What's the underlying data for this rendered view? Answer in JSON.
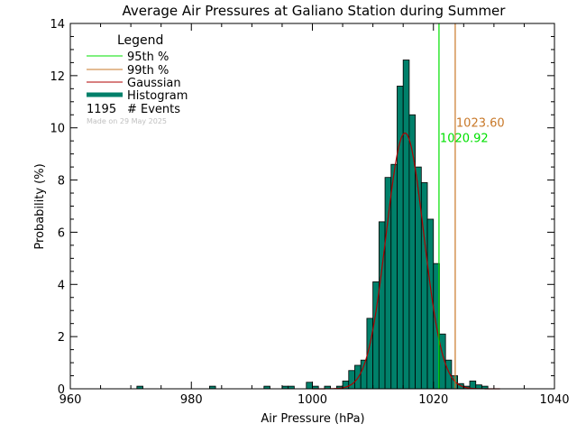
{
  "chart_data": {
    "type": "bar",
    "title": "Average Air Pressures at Galiano Station during Summer",
    "xlabel": "Air Pressure (hPa)",
    "ylabel": "Probability (%)",
    "xlim": [
      960,
      1040
    ],
    "ylim": [
      0,
      14
    ],
    "x_ticks": [
      "960",
      "980",
      "1000",
      "1020",
      "1040"
    ],
    "y_ticks": [
      "0",
      "2",
      "4",
      "6",
      "8",
      "10",
      "12",
      "14"
    ],
    "bin_width": 1,
    "histogram": [
      {
        "x": 971,
        "y": 0.1
      },
      {
        "x": 983,
        "y": 0.1
      },
      {
        "x": 992,
        "y": 0.1
      },
      {
        "x": 995,
        "y": 0.1
      },
      {
        "x": 996,
        "y": 0.1
      },
      {
        "x": 999,
        "y": 0.25
      },
      {
        "x": 1000,
        "y": 0.1
      },
      {
        "x": 1002,
        "y": 0.1
      },
      {
        "x": 1004,
        "y": 0.1
      },
      {
        "x": 1005,
        "y": 0.3
      },
      {
        "x": 1006,
        "y": 0.7
      },
      {
        "x": 1007,
        "y": 0.9
      },
      {
        "x": 1008,
        "y": 1.1
      },
      {
        "x": 1009,
        "y": 2.7
      },
      {
        "x": 1010,
        "y": 4.1
      },
      {
        "x": 1011,
        "y": 6.4
      },
      {
        "x": 1012,
        "y": 8.1
      },
      {
        "x": 1013,
        "y": 8.6
      },
      {
        "x": 1014,
        "y": 11.6
      },
      {
        "x": 1015,
        "y": 12.6
      },
      {
        "x": 1016,
        "y": 10.5
      },
      {
        "x": 1017,
        "y": 8.5
      },
      {
        "x": 1018,
        "y": 7.9
      },
      {
        "x": 1019,
        "y": 6.5
      },
      {
        "x": 1020,
        "y": 4.8
      },
      {
        "x": 1021,
        "y": 2.1
      },
      {
        "x": 1022,
        "y": 1.1
      },
      {
        "x": 1023,
        "y": 0.5
      },
      {
        "x": 1024,
        "y": 0.2
      },
      {
        "x": 1025,
        "y": 0.1
      },
      {
        "x": 1026,
        "y": 0.3
      },
      {
        "x": 1027,
        "y": 0.15
      },
      {
        "x": 1028,
        "y": 0.1
      }
    ],
    "gaussian": {
      "mean": 1015.3,
      "peak": 9.8,
      "sigma": 3.1
    },
    "percentile_95": {
      "value": 1020.92,
      "label": "1020.92"
    },
    "percentile_99": {
      "value": 1023.6,
      "label": "1023.60"
    },
    "legend": {
      "title": "Legend",
      "position": "top-left",
      "items": [
        {
          "label": "95th %",
          "type": "line",
          "color": "#00e000"
        },
        {
          "label": "99th %",
          "type": "line",
          "color": "#c87828"
        },
        {
          "label": "Gaussian",
          "type": "line",
          "color": "#b00000"
        },
        {
          "label": "Histogram",
          "type": "thick",
          "color": "#00806a"
        }
      ],
      "events_count": "1195",
      "events_label": "# Events",
      "credit": "Made on 29 May 2025"
    },
    "colors": {
      "histogram_fill": "#00806a",
      "histogram_edge": "#000000",
      "gaussian": "#b00000",
      "p95": "#00e000",
      "p99": "#c87828",
      "credit": "#c0c0c0"
    }
  }
}
